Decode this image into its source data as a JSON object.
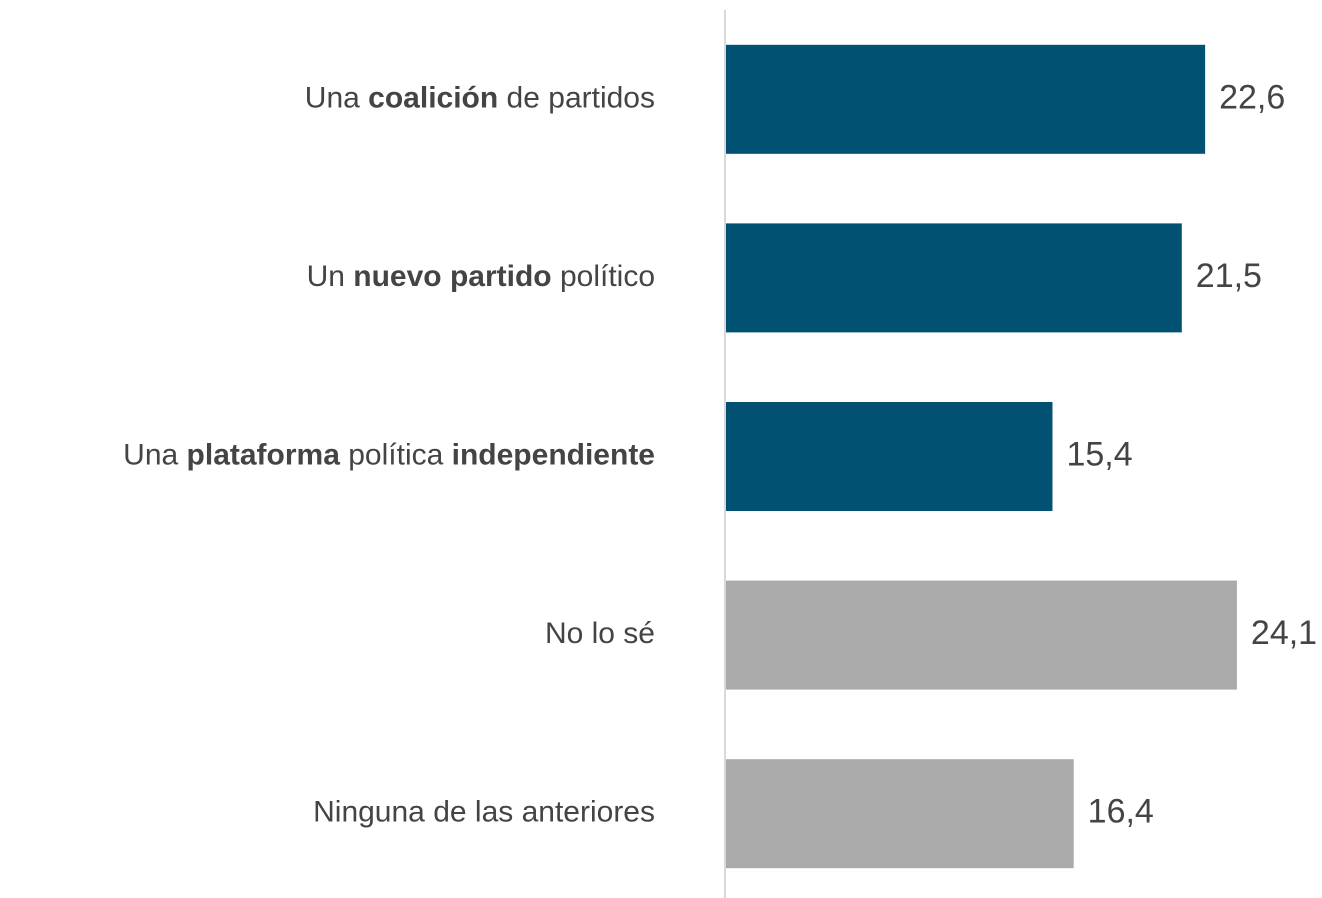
{
  "chart_data": {
    "type": "bar",
    "orientation": "horizontal",
    "categories": [
      "Una coalición de partidos",
      "Un nuevo partido político",
      "Una plataforma política independiente",
      "No lo sé",
      "Ninguna de las anteriores"
    ],
    "bold_words": [
      [
        "coalición"
      ],
      [
        "nuevo partido"
      ],
      [
        "plataforma",
        "independiente"
      ],
      [],
      []
    ],
    "values": [
      22.6,
      21.5,
      15.4,
      24.1,
      16.4
    ],
    "value_labels": [
      "22,6",
      "21,5",
      "15,4",
      "24,1",
      "16,4"
    ],
    "colors": [
      "#005172",
      "#005172",
      "#005172",
      "#aaaaaa",
      "#aaaaaa"
    ]
  }
}
